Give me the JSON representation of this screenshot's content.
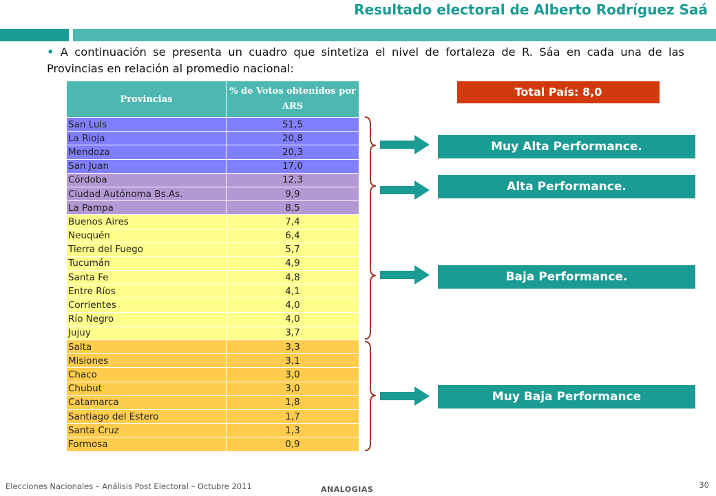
{
  "title": "Resultado electoral de Alberto Rodríguez Saá",
  "intro": "A continuación se presenta un cuadro que sintetiza el nivel de fortaleza de R. Sáa en cada una de las Provincias en relación al promedio nacional:",
  "table": {
    "headers": [
      "Provincias",
      "% de Votos obtenidos por ARS"
    ],
    "rows": [
      {
        "province": "San Luis",
        "value": "51,5",
        "color": "#8080ff"
      },
      {
        "province": "La Rioja",
        "value": "20,8",
        "color": "#8080ff"
      },
      {
        "province": "Mendoza",
        "value": "20,3",
        "color": "#8080ff"
      },
      {
        "province": "San Juan",
        "value": "17,0",
        "color": "#8080ff"
      },
      {
        "province": "Córdoba",
        "value": "12,3",
        "color": "#b399d4"
      },
      {
        "province": "Ciudad Autónoma Bs.As.",
        "value": "9,9",
        "color": "#b399d4"
      },
      {
        "province": "La Pampa",
        "value": "8,5",
        "color": "#b399d4"
      },
      {
        "province": "Buenos Aires",
        "value": "7,4",
        "color": "#ffff8c"
      },
      {
        "province": "Neuquén",
        "value": "6,4",
        "color": "#ffff8c"
      },
      {
        "province": "Tierra del Fuego",
        "value": "5,7",
        "color": "#ffff8c"
      },
      {
        "province": "Tucumán",
        "value": "4,9",
        "color": "#ffff8c"
      },
      {
        "province": "Santa Fe",
        "value": "4,8",
        "color": "#ffff8c"
      },
      {
        "province": "Entre Ríos",
        "value": "4,1",
        "color": "#ffff8c"
      },
      {
        "province": "Corrientes",
        "value": "4,0",
        "color": "#ffff8c"
      },
      {
        "province": "Río Negro",
        "value": "4,0",
        "color": "#ffff8c"
      },
      {
        "province": "Jujuy",
        "value": "3,7",
        "color": "#ffff8c"
      },
      {
        "province": "Salta",
        "value": "3,3",
        "color": "#ffcc4d"
      },
      {
        "province": "Misiones",
        "value": "3,1",
        "color": "#ffcc4d"
      },
      {
        "province": "Chaco",
        "value": "3,0",
        "color": "#ffcc4d"
      },
      {
        "province": "Chubut",
        "value": "3,0",
        "color": "#ffcc4d"
      },
      {
        "province": "Catamarca",
        "value": "1,8",
        "color": "#ffcc4d"
      },
      {
        "province": "Santiago del Estero",
        "value": "1,7",
        "color": "#ffcc4d"
      },
      {
        "province": "Santa Cruz",
        "value": "1,3",
        "color": "#ffcc4d"
      },
      {
        "province": "Formosa",
        "value": "0,9",
        "color": "#ffcc4d"
      }
    ]
  },
  "total": "Total País: 8,0",
  "categories": {
    "muy_alta": "Muy Alta Performance.",
    "alta": "Alta Performance.",
    "baja": "Baja Performance.",
    "muy_baja": "Muy Baja Performance"
  },
  "colors": {
    "teal": "#1a9b93",
    "teal_light": "#4db8b1",
    "total_red": "#d03a0c",
    "brace_red": "#9e3a2a"
  },
  "footer": {
    "text": "Elecciones Nacionales – Análisis Post Electoral – Octubre 2011",
    "brand": "ANALOGIAS",
    "page": "30"
  }
}
